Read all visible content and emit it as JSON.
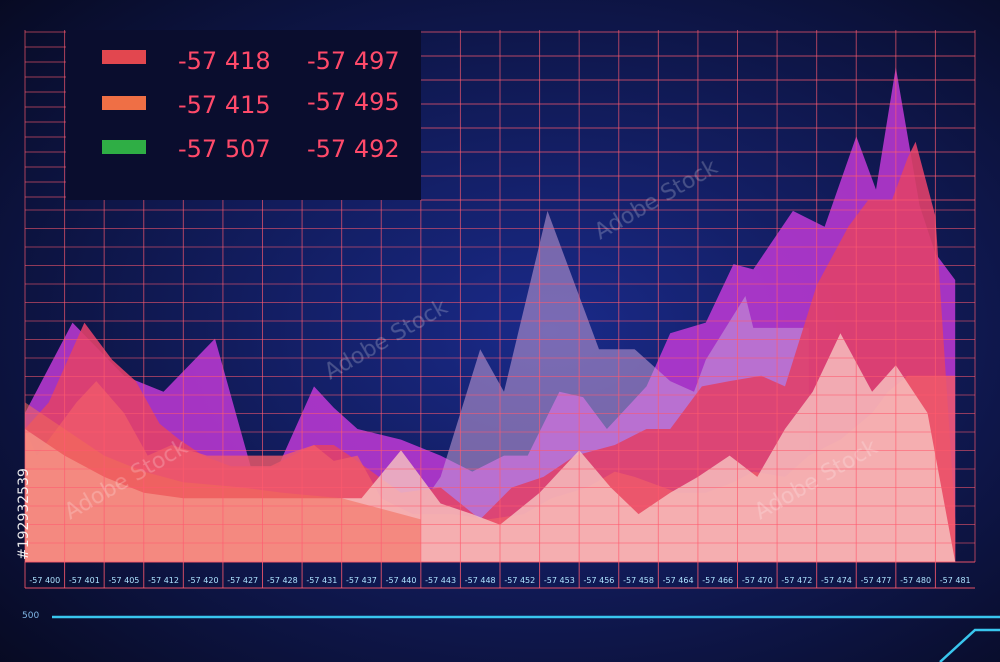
{
  "legend": {
    "items": [
      {
        "color": "#e2474f",
        "value_a": "-57 418",
        "value_b": "-57 497"
      },
      {
        "color": "#ef6f45",
        "value_a": "-57 415",
        "value_b": "-57 495"
      },
      {
        "color": "#2fae45",
        "value_a": "-57 507",
        "value_b": "-57 492"
      }
    ]
  },
  "bottom_label": "500",
  "watermark": {
    "text": "Adobe Stock",
    "id": "#192932539"
  },
  "colors": {
    "background_center": "#1a2a8a",
    "background_edge": "#070a22",
    "grid": "#ff5a6e",
    "tick_text": "#aee3ff",
    "legend_text": "#ff4a6a",
    "cyan_line": "#39c6ee"
  },
  "chart_data": {
    "type": "area",
    "x_ticks": [
      "-57 400",
      "-57 401",
      "-57 405",
      "-57 412",
      "-57 420",
      "-57 427",
      "-57 428",
      "-57 431",
      "-57 437",
      "-57 440",
      "-57 443",
      "-57 448",
      "-57 452",
      "-57 453",
      "-57 456",
      "-57 458",
      "-57 464",
      "-57 466",
      "-57 470",
      "-57 472",
      "-57 474",
      "-57 477",
      "-57 480",
      "-57 481"
    ],
    "ylim": [
      0,
      100
    ],
    "series": [
      {
        "color": "#c039d6",
        "opacity": 0.85,
        "x": [
          0,
          1.2,
          2.5,
          3.5,
          4.8,
          5.7,
          6.4,
          7.3,
          7.8,
          8.4,
          9.5,
          10.5,
          11.3,
          12.1,
          12.7,
          13.5,
          14.1,
          14.7,
          15.7,
          16.3,
          17.2,
          17.9,
          18.4,
          19.4,
          20.2,
          21.0,
          21.5,
          22.0,
          22.6,
          23.0,
          23.5
        ],
        "y": [
          28,
          45,
          35,
          32,
          42,
          18,
          18,
          33,
          29,
          25,
          23,
          20,
          17,
          20,
          20,
          32,
          31,
          25,
          33,
          43,
          45,
          56,
          55,
          66,
          63,
          80,
          70,
          93,
          67,
          58,
          53
        ]
      },
      {
        "color": "#c9a1d8",
        "opacity": 0.55,
        "x": [
          0,
          9,
          10.5,
          11.5,
          12.1,
          13.2,
          14.5,
          15.4,
          16.3,
          16.9,
          17.2,
          17.7,
          18.2,
          18.4,
          19.8
        ],
        "y": [
          0,
          0,
          16,
          40,
          32,
          66,
          40,
          40,
          34,
          32,
          38,
          44,
          50,
          44,
          44
        ]
      },
      {
        "color": "#e0406a",
        "opacity": 0.9,
        "x": [
          0,
          0.6,
          1.5,
          2.2,
          2.8,
          3.4,
          3.9,
          4.5,
          5.2,
          6.2,
          7.3,
          7.8,
          8.2,
          9.5,
          10.5,
          11.5,
          12.3,
          13.1,
          13.9,
          14.9,
          15.7,
          16.3,
          16.8,
          17.1,
          17.8,
          18.6,
          19.2,
          20.0,
          20.8,
          21.3,
          21.9,
          22.3,
          22.5,
          23.0,
          23.5
        ],
        "y": [
          25,
          30,
          45,
          38,
          34,
          26,
          23,
          20,
          18,
          18,
          22,
          22,
          20,
          13,
          14,
          8,
          14,
          16,
          20,
          22,
          25,
          25,
          30,
          33,
          34,
          35,
          33,
          52,
          63,
          68,
          68,
          76,
          79,
          65,
          8
        ]
      },
      {
        "color": "#ee5a6a",
        "opacity": 0.82,
        "x": [
          0,
          0.3,
          1.3,
          1.8,
          2.5,
          3.1,
          3.7,
          4.6,
          5.5,
          6.5,
          7.3,
          7.8,
          8.4,
          9.0,
          9.8,
          10.8,
          11.7,
          12.6,
          13.3,
          14.2,
          14.9,
          15.4,
          16.5,
          17.2,
          17.9,
          18.4,
          19.2,
          19.8,
          20.6,
          21.4,
          21.8,
          22.3,
          23.0,
          23.5
        ],
        "y": [
          25,
          20,
          30,
          34,
          28,
          20,
          22,
          20,
          20,
          20,
          22,
          19,
          20,
          12,
          9,
          9,
          8,
          9,
          12,
          14,
          17,
          16,
          13,
          13,
          15,
          17,
          16,
          20,
          23,
          28,
          32,
          35,
          35,
          35
        ]
      },
      {
        "color": "#f7c2c0",
        "opacity": 0.82,
        "x": [
          0,
          1.0,
          2.0,
          3.0,
          4.0,
          5.5,
          6.5,
          7.3,
          8.5,
          9.5,
          10.5,
          11.3,
          12.0,
          13.0,
          14.0,
          14.8,
          15.5,
          16.3,
          17.0,
          17.8,
          18.5,
          19.2,
          19.9,
          20.6,
          21.4,
          22.0,
          22.8,
          23.5
        ],
        "y": [
          25,
          20,
          16,
          13,
          12,
          12,
          12,
          12,
          12,
          21,
          11,
          9,
          7,
          13,
          21,
          14,
          9,
          13,
          16,
          20,
          16,
          25,
          32,
          43,
          32,
          37,
          28,
          0
        ]
      },
      {
        "color": "#f36b5a",
        "opacity": 0.55,
        "x": [
          0,
          1.0,
          2.0,
          3.0,
          4.0,
          5.5,
          6.5,
          8.0,
          9.0,
          10.0
        ],
        "y": [
          30,
          25,
          20,
          17,
          15,
          14,
          13,
          12,
          10,
          8
        ]
      }
    ]
  }
}
